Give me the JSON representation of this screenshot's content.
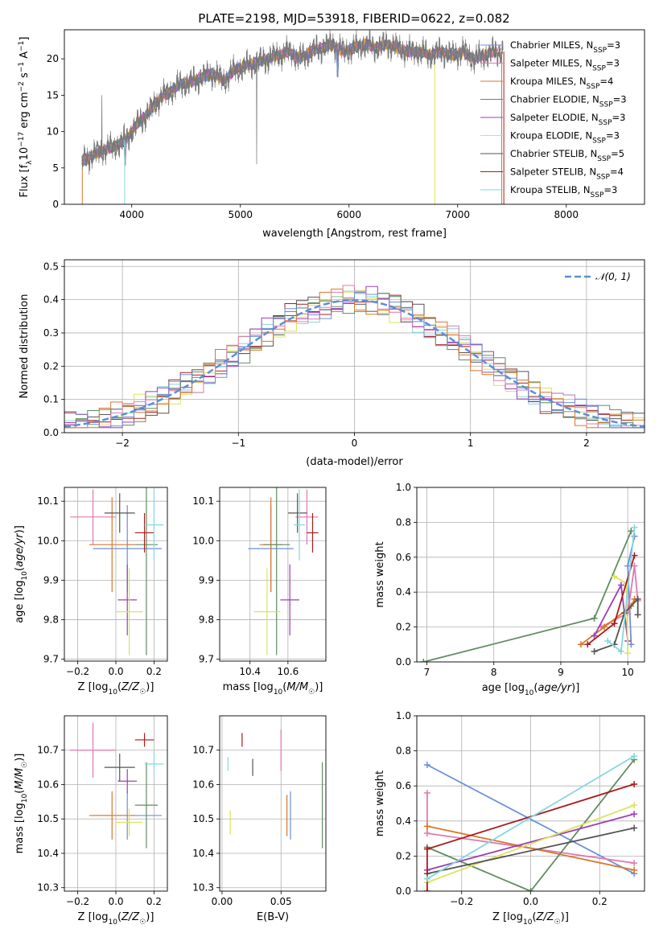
{
  "figure_title": "PLATE=2198, MJD=53918, FIBERID=0622, z=0.082",
  "colors": {
    "Chabrier MILES": "#6c8fd9",
    "Salpeter MILES": "#e079b0",
    "Kroupa MILES": "#d9772a",
    "Chabrier ELODIE": "#5f8c62",
    "Salpeter ELODIE": "#9b3fb5",
    "Kroupa ELODIE": "#dbe35c",
    "Chabrier STELIB": "#545454",
    "Salpeter STELIB": "#aa1b1b",
    "Kroupa STELIB": "#86d6de",
    "normal": "#5b8fd6",
    "grid": "#b0b0b0"
  },
  "chart_data": [
    {
      "id": "spectrum",
      "type": "line",
      "title": "PLATE=2198, MJD=53918, FIBERID=0622, z=0.082",
      "xlabel": "wavelength [Angstrom, rest frame]",
      "ylabel": "Flux [fλ10⁻¹⁷ erg cm⁻² s⁻¹ A⁻¹]",
      "xlim": [
        3380,
        8720
      ],
      "ylim": [
        0,
        24
      ],
      "xticks": [
        4000,
        5000,
        6000,
        7000,
        8000
      ],
      "yticks": [
        0,
        5,
        10,
        15,
        20
      ],
      "grid": false,
      "legend_position": "top-right",
      "observed_wavelength": [
        3550,
        3650,
        3750,
        3850,
        3950,
        4050,
        4150,
        4250,
        4350,
        4450,
        4550,
        4650,
        4750,
        4850,
        4950,
        5050,
        5150,
        5250,
        5350,
        5450,
        5550,
        5650,
        5750,
        5850,
        5950,
        6050,
        6150,
        6250,
        6350,
        6450,
        6550,
        6650,
        6750,
        6850,
        6950,
        7050,
        7150,
        7250,
        7350
      ],
      "observed_flux": [
        6.0,
        6.8,
        7.5,
        8.0,
        9.0,
        11.0,
        12.5,
        14.5,
        15.5,
        16.5,
        16.8,
        17.5,
        18.0,
        17.0,
        18.5,
        19.0,
        19.5,
        20.0,
        20.5,
        21.0,
        20.0,
        21.0,
        21.5,
        22.0,
        21.0,
        21.5,
        22.0,
        21.5,
        22.0,
        21.5,
        21.0,
        21.0,
        20.5,
        21.0,
        20.5,
        21.0,
        20.0,
        20.5,
        21.0
      ],
      "series": [
        {
          "name": "Chabrier MILES, N_SSP=3",
          "legend_main": "Chabrier MILES, N",
          "legend_sub": "SSP",
          "legend_tail": "=3"
        },
        {
          "name": "Salpeter MILES, N_SSP=3",
          "legend_main": "Salpeter MILES, N",
          "legend_sub": "SSP",
          "legend_tail": "=3"
        },
        {
          "name": "Kroupa MILES, N_SSP=4",
          "legend_main": "Kroupa MILES, N",
          "legend_sub": "SSP",
          "legend_tail": "=4"
        },
        {
          "name": "Chabrier ELODIE, N_SSP=3",
          "legend_main": "Chabrier ELODIE, N",
          "legend_sub": "SSP",
          "legend_tail": "=3"
        },
        {
          "name": "Salpeter ELODIE, N_SSP=3",
          "legend_main": "Salpeter ELODIE, N",
          "legend_sub": "SSP",
          "legend_tail": "=3"
        },
        {
          "name": "Kroupa ELODIE, N_SSP=3",
          "legend_main": "Kroupa ELODIE, N",
          "legend_sub": "SSP",
          "legend_tail": "=3"
        },
        {
          "name": "Chabrier STELIB, N_SSP=5",
          "legend_main": "Chabrier STELIB, N",
          "legend_sub": "SSP",
          "legend_tail": "=5"
        },
        {
          "name": "Salpeter STELIB, N_SSP=4",
          "legend_main": "Salpeter STELIB, N",
          "legend_sub": "SSP",
          "legend_tail": "=4"
        },
        {
          "name": "Kroupa STELIB, N_SSP=3",
          "legend_main": "Kroupa STELIB, N",
          "legend_sub": "SSP",
          "legend_tail": "=3"
        }
      ]
    },
    {
      "id": "residuals",
      "type": "line",
      "xlabel": "(data-model)/error",
      "ylabel": "Normed distribution",
      "xlim": [
        -2.5,
        2.5
      ],
      "ylim": [
        0,
        0.52
      ],
      "xticks": [
        -2,
        -1,
        0,
        1,
        2
      ],
      "xtick_labels": [
        "−2",
        "−1",
        "0",
        "1",
        "2"
      ],
      "yticks": [
        0,
        0.1,
        0.2,
        0.3,
        0.4,
        0.5
      ],
      "ytick_labels": [
        "0.0",
        "0.1",
        "0.2",
        "0.3",
        "0.4",
        "0.5"
      ],
      "grid": true,
      "legend_position": "top-right",
      "legend_label": "𝒩(0, 1)",
      "bin_width": 0.1
    },
    {
      "id": "z-age",
      "type": "scatter",
      "xlabel": "Z [log10(Z/Z☉)]",
      "ylabel": "age [log10(age/yr)]",
      "xlim": [
        -0.27,
        0.27
      ],
      "ylim": [
        9.695,
        10.135
      ],
      "xticks": [
        -0.2,
        0,
        0.2
      ],
      "xtick_labels": [
        "−0.2",
        "0.0",
        "0.2"
      ],
      "yticks": [
        9.7,
        9.8,
        9.9,
        10.0,
        10.1
      ],
      "ytick_labels": [
        "9.7",
        "9.8",
        "9.9",
        "10.0",
        "10.1"
      ],
      "grid": true
    },
    {
      "id": "mass-age",
      "type": "scatter",
      "xlabel": "mass [log10(M/M☉)]",
      "xlim": [
        10.24,
        10.8
      ],
      "ylim": [
        9.695,
        10.135
      ],
      "xticks": [
        10.4,
        10.6
      ],
      "yticks": [
        9.7,
        9.8,
        9.9,
        10.0,
        10.1
      ],
      "ytick_labels": [
        "9.7",
        "9.8",
        "9.9",
        "10.0",
        "10.1"
      ],
      "grid": true
    },
    {
      "id": "age-weight",
      "type": "line",
      "xlabel": "age [log10(age/yr)]",
      "ylabel": "mass weight",
      "xlim": [
        6.85,
        10.25
      ],
      "ylim": [
        0,
        1
      ],
      "xticks": [
        7,
        8,
        9,
        10
      ],
      "yticks": [
        0,
        0.2,
        0.4,
        0.6,
        0.8,
        1.0
      ],
      "ytick_labels": [
        "0.0",
        "0.2",
        "0.4",
        "0.6",
        "0.8",
        "1.0"
      ],
      "grid": true
    },
    {
      "id": "z-mass",
      "type": "scatter",
      "xlabel": "Z [log10(Z/Z☉)]",
      "ylabel": "mass [log10(M/M☉)]",
      "xlim": [
        -0.27,
        0.27
      ],
      "ylim": [
        10.29,
        10.8
      ],
      "xticks": [
        -0.2,
        0,
        0.2
      ],
      "xtick_labels": [
        "−0.2",
        "0.0",
        "0.2"
      ],
      "yticks": [
        10.3,
        10.4,
        10.5,
        10.6,
        10.7
      ],
      "grid": true
    },
    {
      "id": "ebv-mass",
      "type": "scatter",
      "xlabel": "E(B-V)",
      "xlim": [
        -0.002,
        0.088
      ],
      "ylim": [
        10.29,
        10.8
      ],
      "xticks": [
        0.0,
        0.05
      ],
      "xtick_labels": [
        "0.00",
        "0.05"
      ],
      "yticks": [
        10.3,
        10.4,
        10.5,
        10.6,
        10.7
      ],
      "grid": true
    },
    {
      "id": "z-weight",
      "type": "line",
      "xlabel": "Z [log10(Z/Z☉)]",
      "ylabel": "mass weight",
      "xlim": [
        -0.33,
        0.33
      ],
      "ylim": [
        0,
        1
      ],
      "xticks": [
        -0.2,
        0,
        0.2
      ],
      "xtick_labels": [
        "−0.2",
        "0.0",
        "0.2"
      ],
      "yticks": [
        0,
        0.2,
        0.4,
        0.6,
        0.8,
        1.0
      ],
      "ytick_labels": [
        "0.0",
        "0.2",
        "0.4",
        "0.6",
        "0.8",
        "1.0"
      ],
      "grid": true
    }
  ],
  "models": [
    {
      "name": "Chabrier MILES",
      "Z": 0.06,
      "Z_err": 0.18,
      "age": 9.98,
      "age_err": 0.11,
      "mass": 10.51,
      "mass_err": 0.14,
      "mass_age_err": 0.12,
      "ebv": 0.058,
      "ebv_err": 0.14,
      "age_w": [
        [
          10.05,
          0.1
        ],
        [
          10.0,
          0.55
        ],
        [
          10.1,
          0.72
        ]
      ],
      "z_w": [
        [
          -0.3,
          0.72
        ],
        [
          0.3,
          0.1
        ]
      ]
    },
    {
      "name": "Salpeter MILES",
      "Z": -0.12,
      "Z_err": 0.12,
      "age": 10.06,
      "age_err": 0.07,
      "mass": 10.7,
      "mass_err": 0.16,
      "mass_age_err": 0.06,
      "ebv": 0.05,
      "ebv_err": 0.12,
      "age_w": [
        [
          9.6,
          0.2
        ],
        [
          10.0,
          0.28
        ],
        [
          10.1,
          0.55
        ],
        [
          10.15,
          0.35
        ]
      ],
      "z_w": [
        [
          -0.3,
          0.56
        ],
        [
          -0.3,
          0.33
        ],
        [
          0.3,
          0.16
        ]
      ]
    },
    {
      "name": "Kroupa MILES",
      "Z": -0.02,
      "Z_err": 0.12,
      "age": 9.99,
      "age_err": 0.12,
      "mass": 10.51,
      "mass_err": 0.14,
      "mass_age_err": 0.06,
      "ebv": 0.055,
      "ebv_err": 0.12,
      "age_w": [
        [
          9.3,
          0.1
        ],
        [
          9.65,
          0.2
        ],
        [
          10.05,
          0.32
        ],
        [
          10.1,
          0.36
        ]
      ],
      "z_w": [
        [
          -0.3,
          0.37
        ],
        [
          0.3,
          0.12
        ]
      ]
    },
    {
      "name": "Chabrier ELODIE",
      "Z": 0.16,
      "Z_err": 0.06,
      "age": 9.99,
      "age_err": 0.28,
      "mass": 10.54,
      "mass_err": 0.25,
      "mass_age_err": 0.07,
      "ebv": 0.085,
      "ebv_err": 0.25,
      "age_w": [
        [
          6.95,
          0.0
        ],
        [
          9.5,
          0.25
        ],
        [
          10.05,
          0.75
        ]
      ],
      "z_w": [
        [
          -0.3,
          0.25
        ],
        [
          0.0,
          0.0
        ],
        [
          0.3,
          0.75
        ]
      ]
    },
    {
      "name": "Salpeter ELODIE",
      "Z": 0.06,
      "Z_err": 0.05,
      "age": 9.85,
      "age_err": 0.09,
      "mass": 10.61,
      "mass_err": 0.07,
      "mass_age_err": 0.05,
      "ebv": 0.0,
      "ebv_err": 0.0,
      "age_w": [
        [
          9.5,
          0.15
        ],
        [
          9.9,
          0.44
        ],
        [
          10.0,
          0.12
        ]
      ],
      "z_w": [
        [
          -0.3,
          0.12
        ],
        [
          0.3,
          0.44
        ]
      ]
    },
    {
      "name": "Kroupa ELODIE",
      "Z": 0.07,
      "Z_err": 0.07,
      "age": 9.82,
      "age_err": 0.11,
      "mass": 10.49,
      "mass_err": 0.08,
      "mass_age_err": 0.07,
      "ebv": 0.007,
      "ebv_err": 0.07,
      "age_w": [
        [
          9.8,
          0.49
        ],
        [
          9.98,
          0.45
        ],
        [
          10.0,
          0.05
        ]
      ],
      "z_w": [
        [
          -0.3,
          0.05
        ],
        [
          0.3,
          0.49
        ]
      ]
    },
    {
      "name": "Chabrier STELIB",
      "Z": 0.02,
      "Z_err": 0.08,
      "age": 10.07,
      "age_err": 0.05,
      "mass": 10.65,
      "mass_err": 0.08,
      "mass_age_err": 0.05,
      "ebv": 0.026,
      "ebv_err": 0.05,
      "age_w": [
        [
          9.5,
          0.06
        ],
        [
          9.8,
          0.1
        ],
        [
          9.95,
          0.28
        ],
        [
          10.15,
          0.36
        ],
        [
          10.15,
          0.27
        ]
      ],
      "z_w": [
        [
          -0.3,
          0.1
        ],
        [
          0.3,
          0.36
        ]
      ]
    },
    {
      "name": "Salpeter STELIB",
      "Z": 0.15,
      "Z_err": 0.05,
      "age": 10.02,
      "age_err": 0.05,
      "mass": 10.73,
      "mass_err": 0.04,
      "mass_age_err": 0.03,
      "ebv": 0.017,
      "ebv_err": 0.04,
      "age_w": [
        [
          9.4,
          0.1
        ],
        [
          9.8,
          0.22
        ],
        [
          10.1,
          0.61
        ]
      ],
      "z_w": [
        [
          -0.3,
          0.0
        ],
        [
          -0.3,
          0.24
        ],
        [
          0.3,
          0.61
        ]
      ]
    },
    {
      "name": "Kroupa STELIB",
      "Z": 0.2,
      "Z_err": 0.05,
      "age": 10.04,
      "age_err": 0.09,
      "mass": 10.66,
      "mass_err": 0.06,
      "mass_age_err": 0.03,
      "ebv": 0.005,
      "ebv_err": 0.04,
      "age_w": [
        [
          9.7,
          0.12
        ],
        [
          9.9,
          0.06
        ],
        [
          10.1,
          0.77
        ]
      ],
      "z_w": [
        [
          -0.3,
          0.07
        ],
        [
          0.3,
          0.77
        ]
      ]
    }
  ]
}
